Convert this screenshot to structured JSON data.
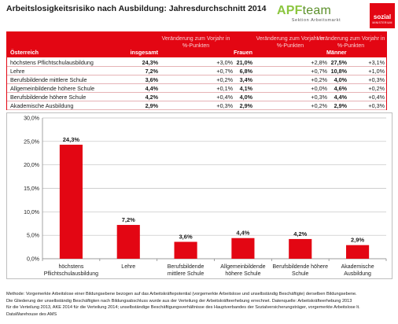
{
  "header": {
    "title": "Arbeitslosigkeitsrisiko nach Ausbildung: Jahresdurchschnitt 2014",
    "logo_apf_a": "APF",
    "logo_apf_b": "team",
    "logo_apf_sub": "Sektion Arbeitsmarkt",
    "logo_sozial": "sozial",
    "logo_sozial_sub": "MINISTERIUM",
    "accent_color": "#e30613",
    "logo_green": "#8cc63f"
  },
  "table": {
    "headers": {
      "region": "Österreich",
      "insgesamt": "insgesamt",
      "change1": "Veränderung zum Vorjahr in %-Punkten",
      "frauen": "Frauen",
      "change2": "Veränderung zum Vorjahr in %-Punkten",
      "maenner": "Männer",
      "change3": "Veränderung zum Vorjahr in %-Punkten"
    },
    "rows": [
      {
        "label": "höchstens Pflichtschulausbildung",
        "insgesamt": "24,3%",
        "chg1": "+3,0%",
        "frauen": "21,0%",
        "chg2": "+2,8%",
        "maenner": "27,5%",
        "chg3": "+3,1%"
      },
      {
        "label": "Lehre",
        "insgesamt": "7,2%",
        "chg1": "+0,7%",
        "frauen": "6,8%",
        "chg2": "+0,7%",
        "maenner": "10,8%",
        "chg3": "+1,0%"
      },
      {
        "label": "Berufsbildende mittlere Schule",
        "insgesamt": "3,6%",
        "chg1": "+0,2%",
        "frauen": "3,4%",
        "chg2": "+0,2%",
        "maenner": "4,0%",
        "chg3": "+0,3%"
      },
      {
        "label": "Allgemeinbildende höhere Schule",
        "insgesamt": "4,4%",
        "chg1": "+0,1%",
        "frauen": "4,1%",
        "chg2": "+0,0%",
        "maenner": "4,6%",
        "chg3": "+0,2%"
      },
      {
        "label": "Berufsbildende höhere Schule",
        "insgesamt": "4,2%",
        "chg1": "+0,4%",
        "frauen": "4,0%",
        "chg2": "+0,3%",
        "maenner": "4,4%",
        "chg3": "+0,4%"
      },
      {
        "label": "Akademische Ausbildung",
        "insgesamt": "2,9%",
        "chg1": "+0,3%",
        "frauen": "2,9%",
        "chg2": "+0,2%",
        "maenner": "2,9%",
        "chg3": "+0,3%"
      }
    ]
  },
  "chart_data": {
    "type": "bar",
    "categories": [
      [
        "höchstens",
        "Pflichtschulausbildung"
      ],
      [
        "Lehre"
      ],
      [
        "Berufsbildende",
        "mittlere Schule"
      ],
      [
        "Allgemeinbildende",
        "höhere Schule"
      ],
      [
        "Berufsbildende höhere",
        "Schule"
      ],
      [
        "Akademische",
        "Ausbildung"
      ]
    ],
    "values": [
      24.3,
      7.2,
      3.6,
      4.4,
      4.2,
      2.9
    ],
    "data_labels": [
      "24,3%",
      "7,2%",
      "3,6%",
      "4,4%",
      "4,2%",
      "2,9%"
    ],
    "yticks": [
      0,
      5,
      10,
      15,
      20,
      25,
      30
    ],
    "ytick_labels": [
      "0,0%",
      "5,0%",
      "10,0%",
      "15,0%",
      "20,0%",
      "25,0%",
      "30,0%"
    ],
    "ylim": [
      0,
      30
    ],
    "grid": true,
    "bar_color": "#e30613",
    "title": "",
    "xlabel": "",
    "ylabel": ""
  },
  "footnote": [
    "Methode: Vorgemerkte Arbeitslose einer Bildungsebene bezogen auf das Arbeitskräftepotential (vorgemerkte Arbeitslose und unselbständig Beschäftigte) derselben Bildungsebene.",
    "Die Gliederung der unselbständig Beschäftigten nach Bildungsabschluss wurde aus der Verteilung der Arbeitskräfteerhebung errechnet. Datenquelle: Arbeitskräfteerhebung 2013",
    "für die Verteilung 2013, AKE 2014 für die Verteilung 2014; unselbständige Beschäftigungsverhältnisse des Hauptverbandes der Sozialversicherungsträger, vorgemerkte Arbeitslose lt.",
    "DataWarehouse des AMS"
  ]
}
